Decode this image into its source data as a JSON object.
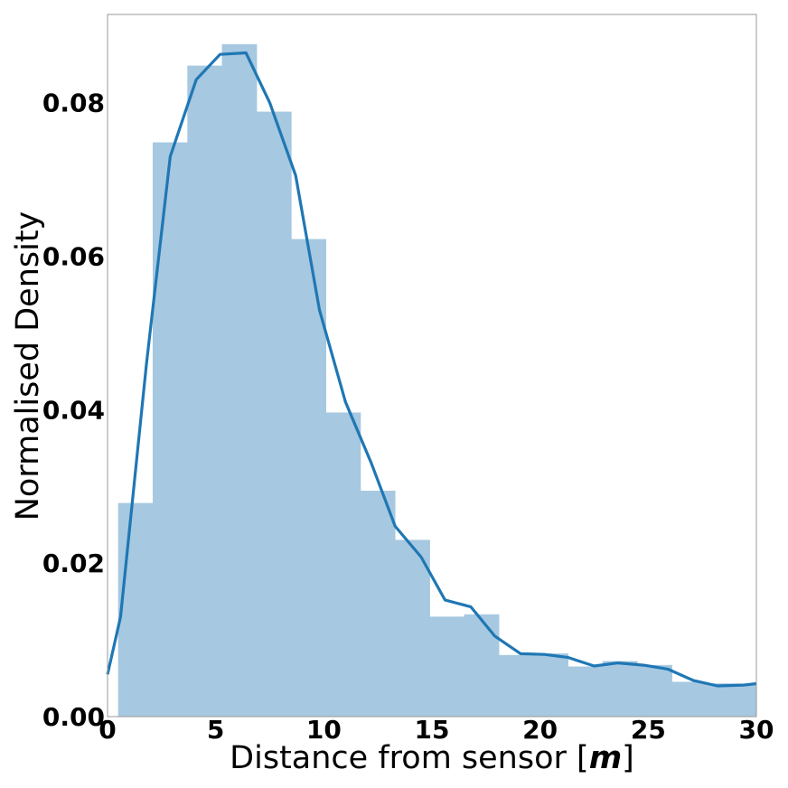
{
  "chart_data": {
    "type": "bar",
    "xlabel_prefix": "Distance from sensor [",
    "xlabel_unit": "m",
    "xlabel_suffix": "]",
    "ylabel": "Normalised Density",
    "xlim": [
      0,
      30
    ],
    "ylim": [
      0,
      0.0915
    ],
    "x_ticks": [
      0,
      5,
      10,
      15,
      20,
      25,
      30
    ],
    "y_ticks": [
      0.0,
      0.02,
      0.04,
      0.06,
      0.08
    ],
    "y_tick_labels": [
      "0.00",
      "0.02",
      "0.04",
      "0.06",
      "0.08"
    ],
    "grid": false,
    "legend": "none",
    "histogram": {
      "bin_edges": [
        0.5,
        2.1,
        3.7,
        5.3,
        6.9,
        8.5,
        10.1,
        11.7,
        13.3,
        14.9,
        16.5,
        18.1,
        19.7,
        21.3,
        22.9,
        24.5,
        26.1,
        27.7,
        30.0
      ],
      "values": [
        0.0278,
        0.0748,
        0.0848,
        0.0876,
        0.0788,
        0.0622,
        0.0396,
        0.0294,
        0.023,
        0.013,
        0.0133,
        0.008,
        0.0082,
        0.0065,
        0.0072,
        0.0067,
        0.0045,
        0.0043
      ],
      "color": "#a6c8e0"
    },
    "kde": {
      "x": [
        0.0,
        0.6,
        1.8,
        2.9,
        4.1,
        5.2,
        6.4,
        7.5,
        8.7,
        9.8,
        11.0,
        12.2,
        13.3,
        14.5,
        15.6,
        16.8,
        17.9,
        19.1,
        20.2,
        21.3,
        22.5,
        23.6,
        24.8,
        25.9,
        27.1,
        28.2,
        29.4,
        30.0
      ],
      "y": [
        0.0055,
        0.013,
        0.046,
        0.073,
        0.083,
        0.0863,
        0.0865,
        0.08,
        0.0705,
        0.053,
        0.041,
        0.033,
        0.0248,
        0.0208,
        0.0152,
        0.0143,
        0.0105,
        0.0082,
        0.0081,
        0.0077,
        0.0066,
        0.007,
        0.0067,
        0.0062,
        0.0047,
        0.004,
        0.0041,
        0.0043
      ],
      "color": "#1f77b4"
    }
  }
}
